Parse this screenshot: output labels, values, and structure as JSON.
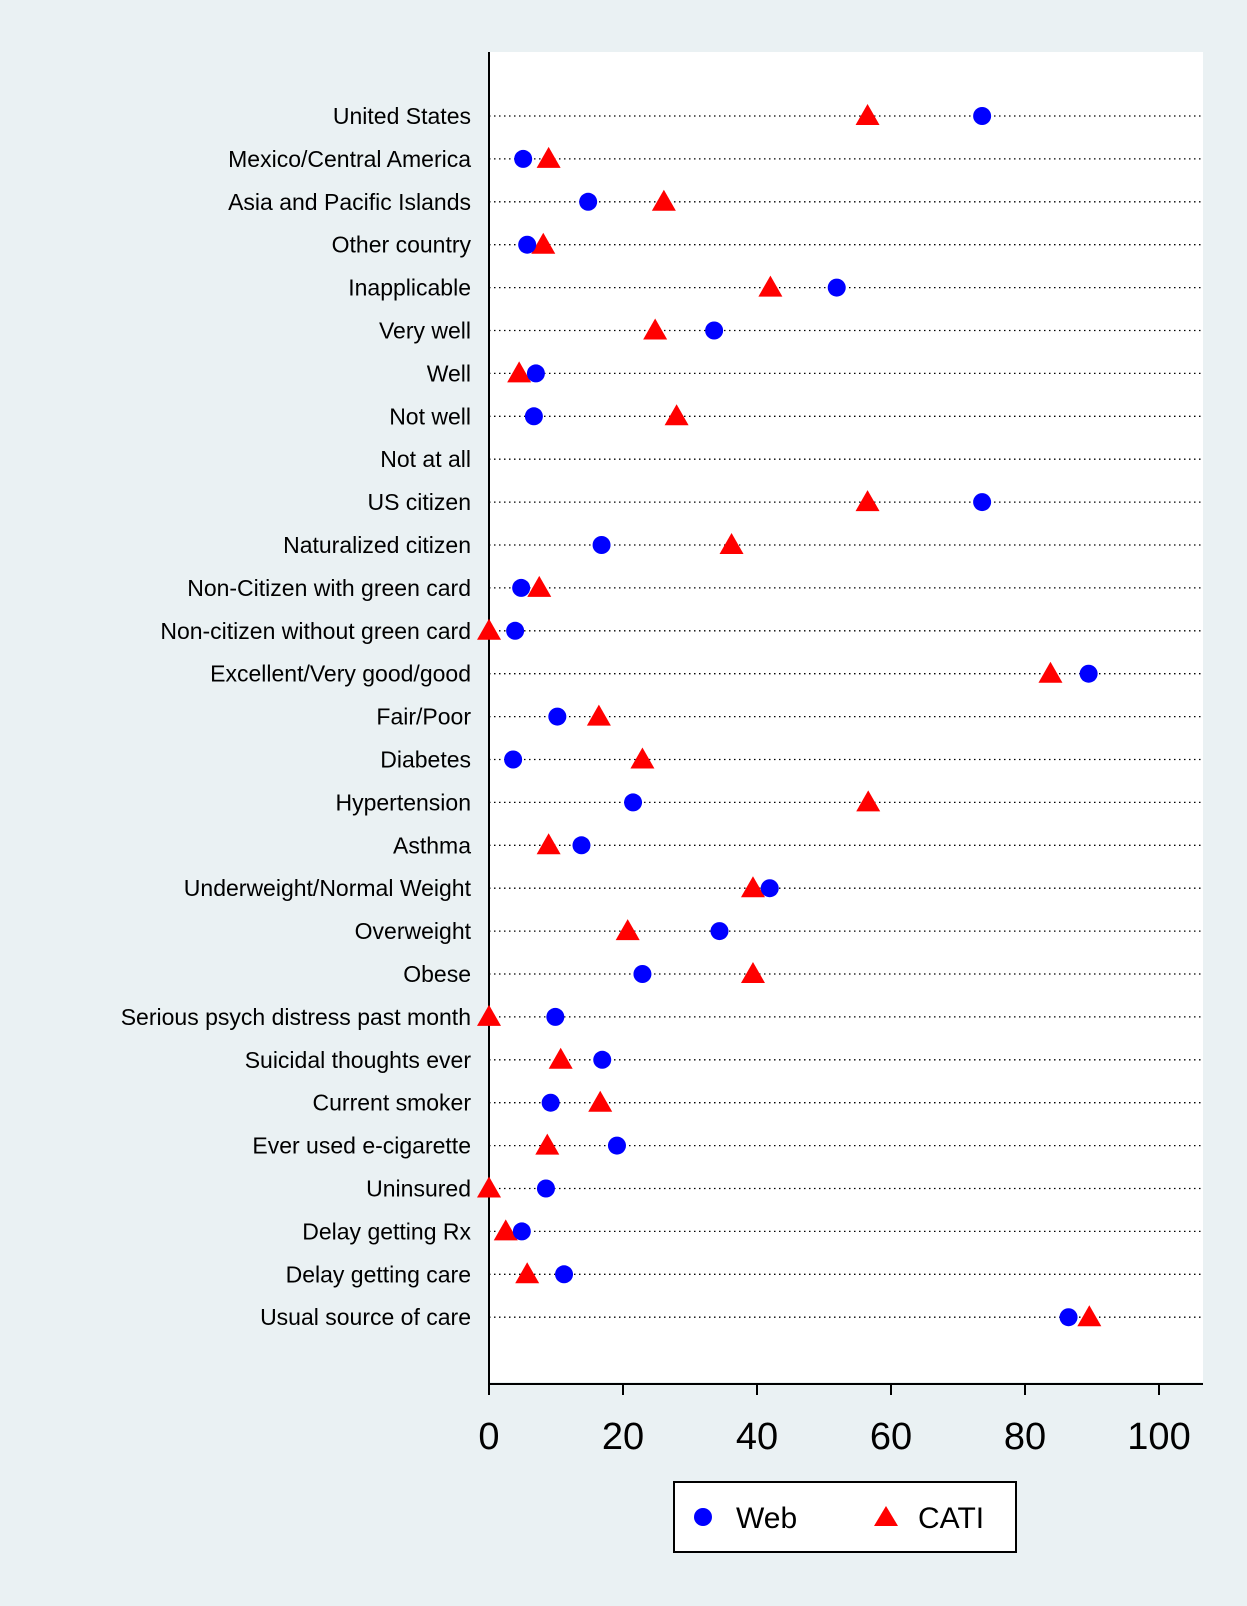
{
  "chart_data": {
    "type": "scatter",
    "orientation": "horizontal-dot-plot",
    "categories": [
      "United States",
      "Mexico/Central America",
      "Asia and Pacific Islands",
      "Other country",
      "Inapplicable",
      "Very well",
      "Well",
      "Not well",
      "Not at all",
      "US citizen",
      "Naturalized citizen",
      "Non-Citizen with green card",
      "Non-citizen without green card",
      "Excellent/Very good/good",
      "Fair/Poor",
      "Diabetes",
      "Hypertension",
      "Asthma",
      "Underweight/Normal Weight",
      "Overweight",
      "Obese",
      "Serious psych distress past month",
      "Suicidal thoughts ever",
      "Current smoker",
      "Ever used e-cigarette",
      "Uninsured",
      "Delay getting Rx",
      "Delay getting care",
      "Usual source of care"
    ],
    "series": [
      {
        "name": "Web",
        "marker": "circle",
        "color": "#0000ff",
        "values": [
          73.6,
          5.1,
          14.8,
          5.7,
          51.9,
          33.6,
          7.0,
          6.7,
          null,
          73.6,
          16.8,
          4.8,
          3.9,
          89.5,
          10.2,
          3.6,
          21.5,
          13.8,
          41.9,
          34.4,
          22.9,
          9.9,
          16.9,
          9.2,
          19.1,
          8.5,
          4.9,
          11.2,
          86.5
        ]
      },
      {
        "name": "CATI",
        "marker": "triangle",
        "color": "#ff0000",
        "values": [
          56.5,
          8.9,
          26.1,
          8.1,
          42.0,
          24.8,
          4.5,
          28.0,
          null,
          56.5,
          36.2,
          7.5,
          0.0,
          83.8,
          16.4,
          22.9,
          56.6,
          8.9,
          39.4,
          20.7,
          39.4,
          0.0,
          10.7,
          16.6,
          8.7,
          0.0,
          2.5,
          5.7,
          89.6
        ]
      }
    ],
    "xlim": [
      0,
      106
    ],
    "xticks": [
      "0",
      "20",
      "40",
      "60",
      "80",
      "100"
    ],
    "xlabel": "",
    "ylabel": "",
    "title": "",
    "grid": "dotted horizontal",
    "legend_position": "bottom"
  }
}
